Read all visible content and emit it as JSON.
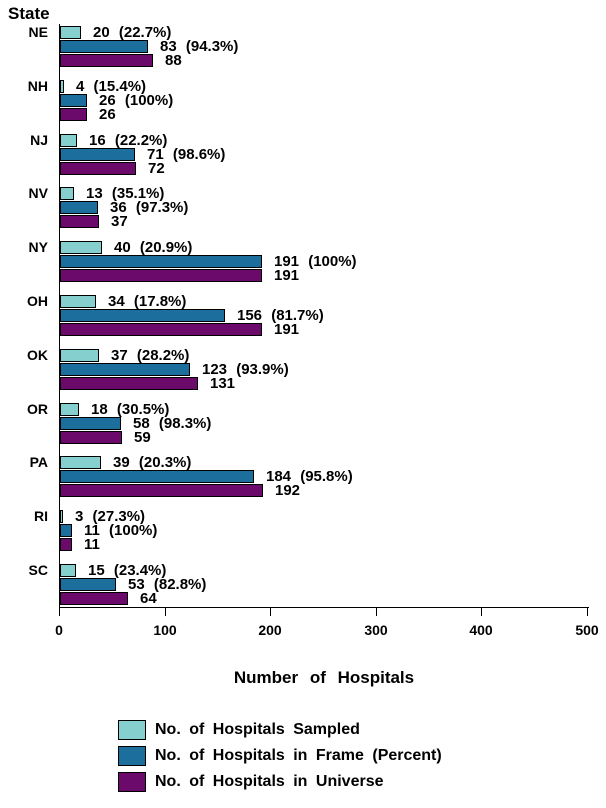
{
  "page": {
    "background_color": "#ffffff",
    "text_color": "#000000"
  },
  "chart_data": {
    "type": "bar",
    "orientation": "horizontal",
    "y_axis_title": "State",
    "xlabel": "Number of Hospitals",
    "xlim": [
      0,
      500
    ],
    "x_ticks": [
      "0",
      "100",
      "200",
      "300",
      "400",
      "500"
    ],
    "grid": false,
    "legend_position": "bottom-left",
    "bar_border_color": "#000000",
    "categories": [
      "NE",
      "NH",
      "NJ",
      "NV",
      "NY",
      "OH",
      "OK",
      "OR",
      "PA",
      "RI",
      "SC"
    ],
    "series": [
      {
        "name": "No. of Hospitals Sampled",
        "color": "#85CFCE",
        "values": [
          20,
          4,
          16,
          13,
          40,
          34,
          37,
          18,
          39,
          3,
          15
        ],
        "labels": [
          "20 (22.7%)",
          "4 (15.4%)",
          "16 (22.2%)",
          "13 (35.1%)",
          "40 (20.9%)",
          "34 (17.8%)",
          "37 (28.2%)",
          "18 (30.5%)",
          "39 (20.3%)",
          "3 (27.3%)",
          "15 (23.4%)"
        ]
      },
      {
        "name": "No. of Hospitals in Frame (Percent)",
        "color": "#1C6F9C",
        "values": [
          83,
          26,
          71,
          36,
          191,
          156,
          123,
          58,
          184,
          11,
          53
        ],
        "labels": [
          "83 (94.3%)",
          "26 (100%)",
          "71 (98.6%)",
          "36 (97.3%)",
          "191 (100%)",
          "156 (81.7%)",
          "123 (93.9%)",
          "58 (98.3%)",
          "184 (95.8%)",
          "11 (100%)",
          "53 (82.8%)"
        ]
      },
      {
        "name": "No. of Hospitals in Universe",
        "color": "#6B0A6B",
        "values": [
          88,
          26,
          72,
          37,
          191,
          191,
          131,
          59,
          192,
          11,
          64
        ],
        "labels": [
          "88",
          "26",
          "72",
          "37",
          "191",
          "191",
          "131",
          "59",
          "192",
          "11",
          "64"
        ]
      }
    ]
  }
}
